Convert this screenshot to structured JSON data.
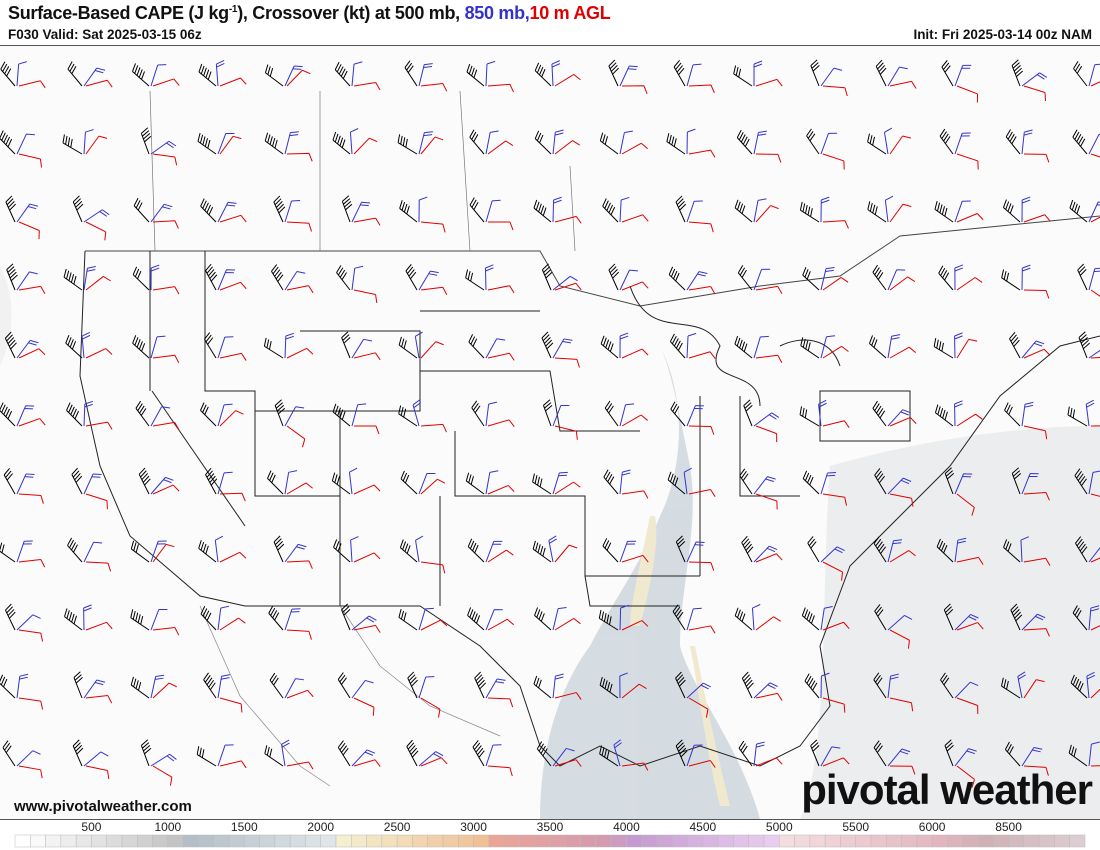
{
  "header": {
    "title_main": "Surface-Based CAPE (J kg",
    "title_sup": "-1",
    "title_rest": "), Crossover (kt) at 500 mb, ",
    "title_850": "850 mb,",
    "title_10m": "10 m AGL",
    "valid": "F030 Valid: Sat 2025-03-15 06z",
    "init": "Init: Fri 2025-03-14 00z NAM"
  },
  "footer": {
    "website": "www.pivotalweather.com",
    "logo": "pivotal weather"
  },
  "colors": {
    "barb_500mb": "#000000",
    "barb_850mb": "#3333cc",
    "barb_10m": "#e00000",
    "title_850": "#3333cc",
    "title_10m": "#e00000"
  },
  "colorbar": {
    "labels": [
      "500",
      "1000",
      "1500",
      "2000",
      "2500",
      "3000",
      "3500",
      "4000",
      "4500",
      "5000",
      "5500",
      "6000",
      "8500"
    ]
  }
}
